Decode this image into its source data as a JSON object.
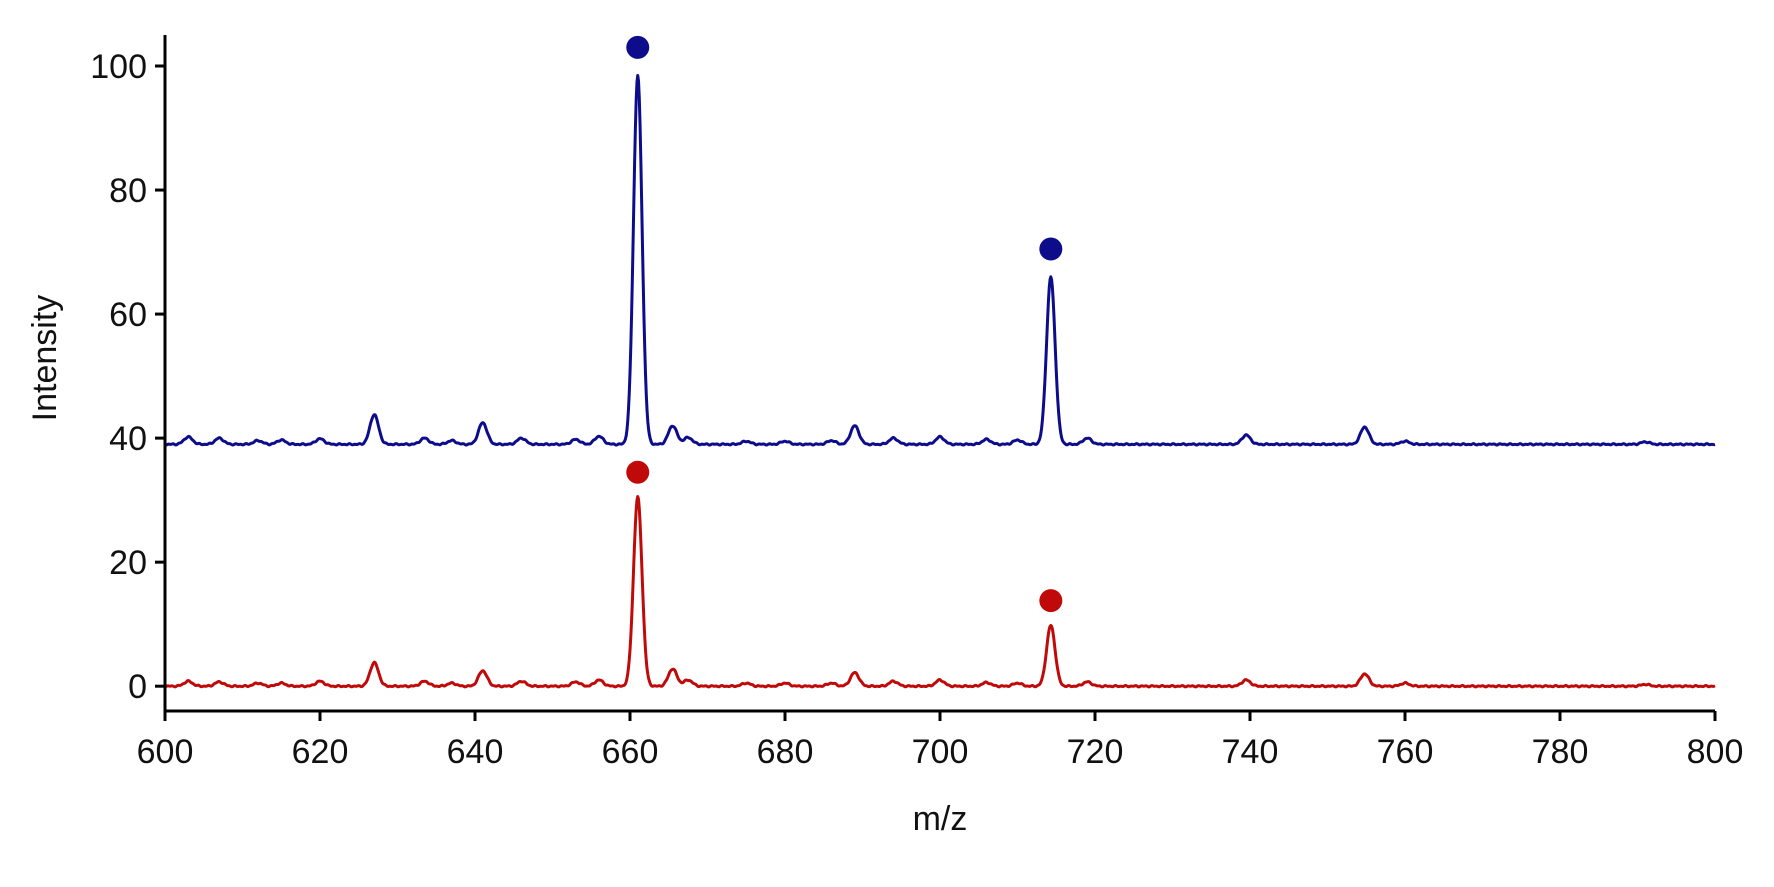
{
  "chart_data": {
    "type": "line",
    "title": "",
    "xlabel": "m/z",
    "ylabel": "Intensity",
    "xlim": [
      600,
      800
    ],
    "ylim": [
      -4,
      105
    ],
    "x_ticks": [
      600,
      620,
      640,
      660,
      680,
      700,
      720,
      740,
      760,
      780,
      800
    ],
    "y_ticks": [
      0,
      20,
      40,
      60,
      80,
      100
    ],
    "grid": false,
    "legend": "none",
    "colors": {
      "series_top": "#0d0d8c",
      "series_bottom": "#c00a0a",
      "axis": "#000000"
    },
    "series": [
      {
        "baseline": 39,
        "color": "#0d0d8c",
        "peaks": [
          {
            "x": 603,
            "y": 40.2
          },
          {
            "x": 607,
            "y": 40.0
          },
          {
            "x": 612,
            "y": 39.6
          },
          {
            "x": 615,
            "y": 39.7
          },
          {
            "x": 620,
            "y": 39.9
          },
          {
            "x": 627,
            "y": 43.8
          },
          {
            "x": 633.5,
            "y": 40.0
          },
          {
            "x": 637,
            "y": 39.6
          },
          {
            "x": 641,
            "y": 42.5
          },
          {
            "x": 646,
            "y": 40.0
          },
          {
            "x": 653,
            "y": 39.8
          },
          {
            "x": 656,
            "y": 40.3
          },
          {
            "x": 661,
            "y": 98.5
          },
          {
            "x": 665.5,
            "y": 42.0
          },
          {
            "x": 667.5,
            "y": 40.1
          },
          {
            "x": 675,
            "y": 39.5
          },
          {
            "x": 680,
            "y": 39.5
          },
          {
            "x": 686,
            "y": 39.6
          },
          {
            "x": 689,
            "y": 42.0
          },
          {
            "x": 694,
            "y": 40.0
          },
          {
            "x": 700,
            "y": 40.2
          },
          {
            "x": 706,
            "y": 39.8
          },
          {
            "x": 710,
            "y": 39.7
          },
          {
            "x": 714.3,
            "y": 66.0
          },
          {
            "x": 719,
            "y": 40.0
          },
          {
            "x": 739.5,
            "y": 40.5
          },
          {
            "x": 754.8,
            "y": 41.8
          },
          {
            "x": 760,
            "y": 39.5
          },
          {
            "x": 791,
            "y": 39.4
          }
        ],
        "markers": [
          {
            "x": 661,
            "y": 103
          },
          {
            "x": 714.3,
            "y": 70.5
          }
        ]
      },
      {
        "baseline": 0,
        "color": "#c00a0a",
        "peaks": [
          {
            "x": 603,
            "y": 0.8
          },
          {
            "x": 607,
            "y": 0.7
          },
          {
            "x": 612,
            "y": 0.5
          },
          {
            "x": 615,
            "y": 0.5
          },
          {
            "x": 620,
            "y": 0.8
          },
          {
            "x": 627,
            "y": 3.8
          },
          {
            "x": 633.5,
            "y": 0.8
          },
          {
            "x": 637,
            "y": 0.5
          },
          {
            "x": 641,
            "y": 2.5
          },
          {
            "x": 646,
            "y": 0.8
          },
          {
            "x": 653,
            "y": 0.7
          },
          {
            "x": 656,
            "y": 1.0
          },
          {
            "x": 661,
            "y": 30.5
          },
          {
            "x": 665.5,
            "y": 2.8
          },
          {
            "x": 667.5,
            "y": 1.0
          },
          {
            "x": 675,
            "y": 0.5
          },
          {
            "x": 680,
            "y": 0.5
          },
          {
            "x": 686,
            "y": 0.5
          },
          {
            "x": 689,
            "y": 2.2
          },
          {
            "x": 694,
            "y": 0.8
          },
          {
            "x": 700,
            "y": 1.0
          },
          {
            "x": 706,
            "y": 0.6
          },
          {
            "x": 710,
            "y": 0.5
          },
          {
            "x": 714.3,
            "y": 9.8
          },
          {
            "x": 719,
            "y": 0.7
          },
          {
            "x": 739.5,
            "y": 1.0
          },
          {
            "x": 754.8,
            "y": 2.0
          },
          {
            "x": 760,
            "y": 0.5
          },
          {
            "x": 791,
            "y": 0.3
          }
        ],
        "markers": [
          {
            "x": 661,
            "y": 34.5
          },
          {
            "x": 714.3,
            "y": 13.8
          }
        ]
      }
    ]
  }
}
